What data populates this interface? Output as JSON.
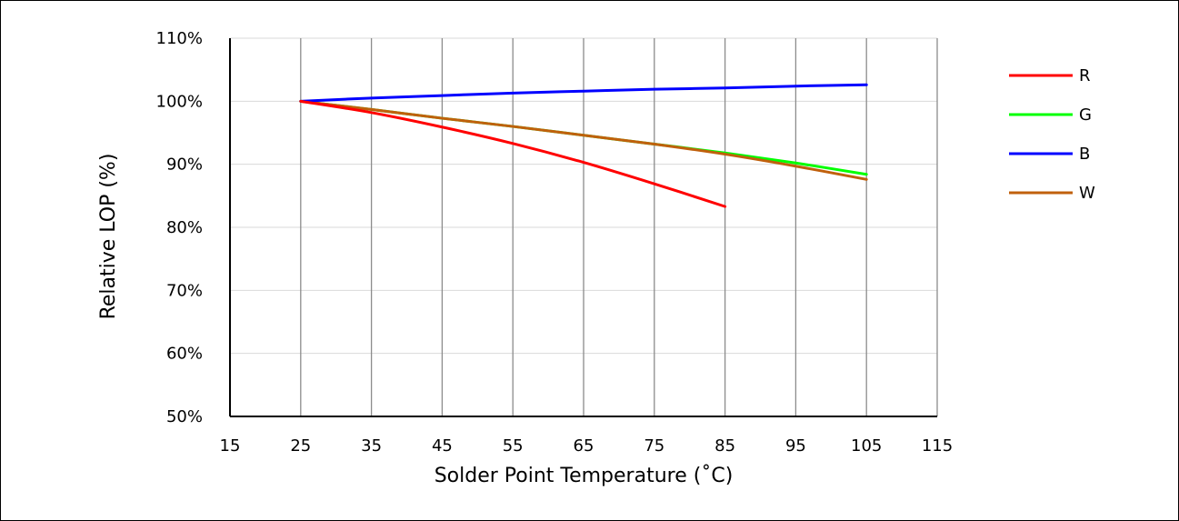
{
  "chart_data": {
    "type": "line",
    "xlabel": "Solder Point Temperature (˚C)",
    "ylabel": "Relative LOP (%)",
    "xlim": [
      15,
      115
    ],
    "ylim": [
      50,
      110
    ],
    "x_ticks": [
      15,
      25,
      35,
      45,
      55,
      65,
      75,
      85,
      95,
      105,
      115
    ],
    "y_ticks": [
      50,
      60,
      70,
      80,
      90,
      100,
      110
    ],
    "x_tick_labels": [
      "15",
      "25",
      "35",
      "45",
      "55",
      "65",
      "75",
      "85",
      "95",
      "105",
      "115"
    ],
    "y_tick_labels": [
      "50%",
      "60%",
      "70%",
      "80%",
      "90%",
      "100%",
      "110%"
    ],
    "grid": "vertical and horizontal",
    "legend_position": "right",
    "series": [
      {
        "name": "R",
        "color": "#ff0000",
        "x": [
          25,
          35,
          45,
          55,
          65,
          75,
          85
        ],
        "y": [
          100,
          98.2,
          95.9,
          93.3,
          90.3,
          86.9,
          83.3
        ]
      },
      {
        "name": "G",
        "color": "#00ff00",
        "x": [
          25,
          35,
          45,
          55,
          65,
          75,
          85,
          95,
          105
        ],
        "y": [
          100,
          98.7,
          97.3,
          96.0,
          94.6,
          93.2,
          91.8,
          90.2,
          88.4
        ]
      },
      {
        "name": "B",
        "color": "#0000ff",
        "x": [
          25,
          35,
          45,
          55,
          65,
          75,
          85,
          95,
          105
        ],
        "y": [
          100,
          100.5,
          100.9,
          101.3,
          101.6,
          101.9,
          102.1,
          102.4,
          102.6
        ]
      },
      {
        "name": "W",
        "color": "#c0600c",
        "x": [
          25,
          35,
          45,
          55,
          65,
          75,
          85,
          95,
          105
        ],
        "y": [
          100,
          98.7,
          97.3,
          96.0,
          94.6,
          93.2,
          91.6,
          89.7,
          87.6
        ]
      }
    ]
  }
}
